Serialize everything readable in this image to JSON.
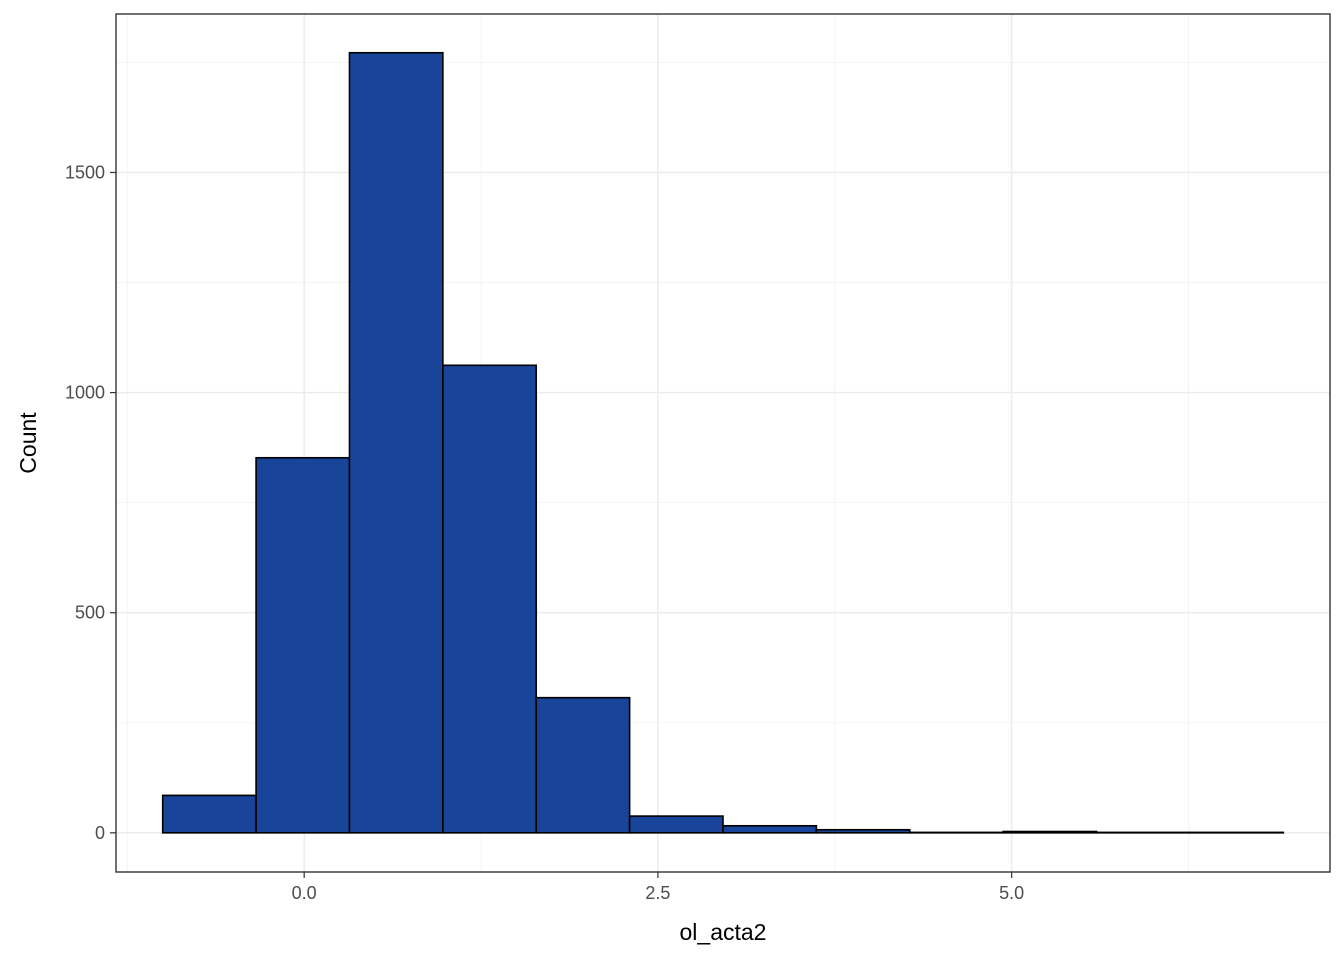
{
  "chart_data": {
    "type": "bar",
    "subtype": "histogram",
    "title": "",
    "xlabel": "ol_acta2",
    "ylabel": "Count",
    "bin_width": 0.66,
    "bins": [
      {
        "start": -1.0,
        "end": -0.34,
        "count": 85
      },
      {
        "start": -0.34,
        "end": 0.32,
        "count": 852
      },
      {
        "start": 0.32,
        "end": 0.98,
        "count": 1772
      },
      {
        "start": 0.98,
        "end": 1.64,
        "count": 1062
      },
      {
        "start": 1.64,
        "end": 2.3,
        "count": 307
      },
      {
        "start": 2.3,
        "end": 2.96,
        "count": 38
      },
      {
        "start": 2.96,
        "end": 3.62,
        "count": 16
      },
      {
        "start": 3.62,
        "end": 4.28,
        "count": 7
      },
      {
        "start": 4.28,
        "end": 4.94,
        "count": 1
      },
      {
        "start": 4.94,
        "end": 5.6,
        "count": 3
      },
      {
        "start": 5.6,
        "end": 6.26,
        "count": 1
      },
      {
        "start": 6.26,
        "end": 6.92,
        "count": 1
      }
    ],
    "xlim": [
      -1.33,
      7.25
    ],
    "ylim": [
      -89,
      1860
    ],
    "x_ticks": [
      {
        "value": 0.0,
        "label": "0.0"
      },
      {
        "value": 2.5,
        "label": "2.5"
      },
      {
        "value": 5.0,
        "label": "5.0"
      }
    ],
    "x_minor_ticks": [
      -1.25,
      1.25,
      3.75,
      6.25
    ],
    "y_ticks": [
      {
        "value": 0,
        "label": "0"
      },
      {
        "value": 500,
        "label": "500"
      },
      {
        "value": 1000,
        "label": "1000"
      },
      {
        "value": 1500,
        "label": "1500"
      }
    ],
    "y_minor_ticks": [
      250,
      750,
      1250,
      1750
    ],
    "grid": true,
    "legend": "none",
    "bar_fill": "#184499",
    "bar_stroke": "#000000",
    "theme": "bw"
  }
}
